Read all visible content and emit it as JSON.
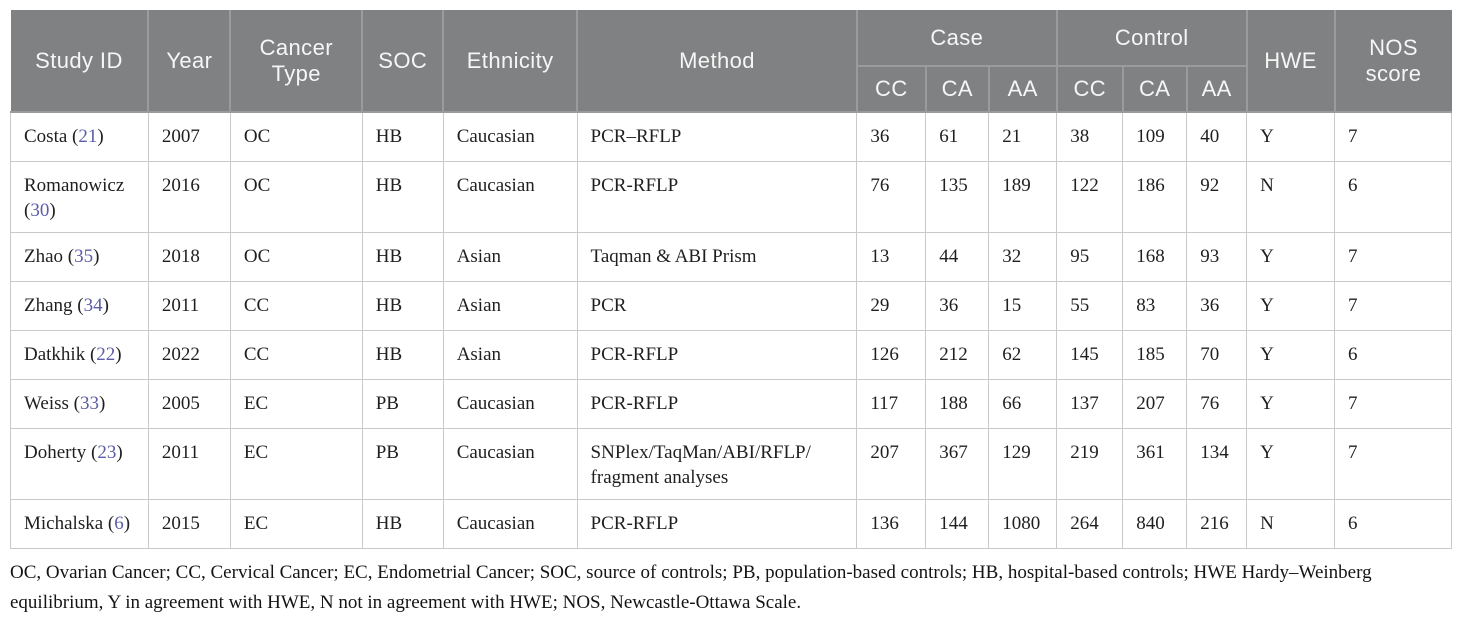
{
  "colors": {
    "header_bg": "#7f8182",
    "header_divider": "#9b9b9b",
    "header_text": "#f6f6f6",
    "body_border": "#c9c9c9",
    "body_text": "#1f1f1f",
    "ref_link": "#5c5ca8"
  },
  "table": {
    "columns": {
      "study": "Study ID",
      "year": "Year",
      "cancer_type": "Cancer Type",
      "soc": "SOC",
      "ethnicity": "Ethnicity",
      "method": "Method",
      "case_group": "Case",
      "control_group": "Control",
      "hwe": "HWE",
      "nos": "NOS score",
      "genotypes": [
        "CC",
        "CA",
        "AA"
      ]
    },
    "rows": [
      {
        "study": "Costa",
        "ref": "21",
        "year": "2007",
        "cancer_type": "OC",
        "soc": "HB",
        "ethnicity": "Caucasian",
        "method": "PCR–RFLP",
        "case": [
          "36",
          "61",
          "21"
        ],
        "control": [
          "38",
          "109",
          "40"
        ],
        "hwe": "Y",
        "nos": "7"
      },
      {
        "study": "Romanowicz",
        "ref": "30",
        "year": "2016",
        "cancer_type": "OC",
        "soc": "HB",
        "ethnicity": "Caucasian",
        "method": "PCR-RFLP",
        "case": [
          "76",
          "135",
          "189"
        ],
        "control": [
          "122",
          "186",
          "92"
        ],
        "hwe": "N",
        "nos": "6"
      },
      {
        "study": "Zhao",
        "ref": "35",
        "year": "2018",
        "cancer_type": "OC",
        "soc": "HB",
        "ethnicity": "Asian",
        "method": "Taqman & ABI Prism",
        "case": [
          "13",
          "44",
          "32"
        ],
        "control": [
          "95",
          "168",
          "93"
        ],
        "hwe": "Y",
        "nos": "7"
      },
      {
        "study": "Zhang",
        "ref": "34",
        "year": "2011",
        "cancer_type": "CC",
        "soc": "HB",
        "ethnicity": "Asian",
        "method": "PCR",
        "case": [
          "29",
          "36",
          "15"
        ],
        "control": [
          "55",
          "83",
          "36"
        ],
        "hwe": "Y",
        "nos": "7"
      },
      {
        "study": "Datkhik",
        "ref": "22",
        "year": "2022",
        "cancer_type": "CC",
        "soc": "HB",
        "ethnicity": "Asian",
        "method": "PCR-RFLP",
        "case": [
          "126",
          "212",
          "62"
        ],
        "control": [
          "145",
          "185",
          "70"
        ],
        "hwe": "Y",
        "nos": "6"
      },
      {
        "study": "Weiss",
        "ref": "33",
        "year": "2005",
        "cancer_type": "EC",
        "soc": "PB",
        "ethnicity": "Caucasian",
        "method": "PCR-RFLP",
        "case": [
          "117",
          "188",
          "66"
        ],
        "control": [
          "137",
          "207",
          "76"
        ],
        "hwe": "Y",
        "nos": "7"
      },
      {
        "study": "Doherty",
        "ref": "23",
        "year": "2011",
        "cancer_type": "EC",
        "soc": "PB",
        "ethnicity": "Caucasian",
        "method": "SNPlex/TaqMan/ABI/RFLP/ fragment analyses",
        "case": [
          "207",
          "367",
          "129"
        ],
        "control": [
          "219",
          "361",
          "134"
        ],
        "hwe": "Y",
        "nos": "7"
      },
      {
        "study": "Michalska",
        "ref": "6",
        "year": "2015",
        "cancer_type": "EC",
        "soc": "HB",
        "ethnicity": "Caucasian",
        "method": "PCR-RFLP",
        "case": [
          "136",
          "144",
          "1080"
        ],
        "control": [
          "264",
          "840",
          "216"
        ],
        "hwe": "N",
        "nos": "6"
      }
    ]
  },
  "footnote": "OC, Ovarian Cancer; CC, Cervical Cancer; EC, Endometrial Cancer; SOC, source of controls; PB, population-based controls; HB, hospital-based controls; HWE Hardy–Weinberg equilibrium, Y in agreement with HWE, N not in agreement with HWE; NOS, Newcastle-Ottawa Scale."
}
